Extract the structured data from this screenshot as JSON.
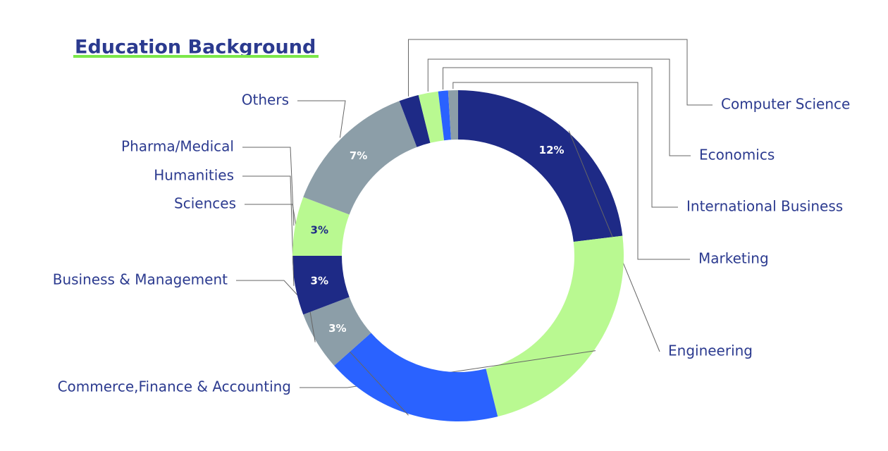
{
  "chart_data": {
    "type": "pie",
    "title": "Education Background",
    "categories": [
      "Engineering",
      "Commerce,Finance & Accounting",
      "Business & Management",
      "Sciences",
      "Humanities",
      "Pharma/Medical",
      "Others",
      "Computer Science",
      "Economics",
      "International Business",
      "Marketing"
    ],
    "values": [
      12,
      12,
      9,
      3,
      3,
      3,
      7,
      1,
      1,
      0.5,
      0.5
    ],
    "value_labels": [
      "12%",
      null,
      null,
      "3%",
      "3%",
      "3%",
      "7%",
      null,
      null,
      null,
      null
    ],
    "colors": [
      "#1e2a86",
      "#b9f991",
      "#2a62ff",
      "#8c9ea8",
      "#1e2a86",
      "#b9f991",
      "#8c9ea8",
      "#1e2a86",
      "#b9f991",
      "#2a62ff",
      "#8c9ea8"
    ],
    "label_colors": [
      "#ffffff",
      "#1e2a86",
      "#ffffff",
      "#ffffff",
      "#ffffff",
      "#1e2a86",
      "#ffffff",
      "#ffffff",
      "#1e2a86",
      "#ffffff",
      "#ffffff"
    ]
  }
}
